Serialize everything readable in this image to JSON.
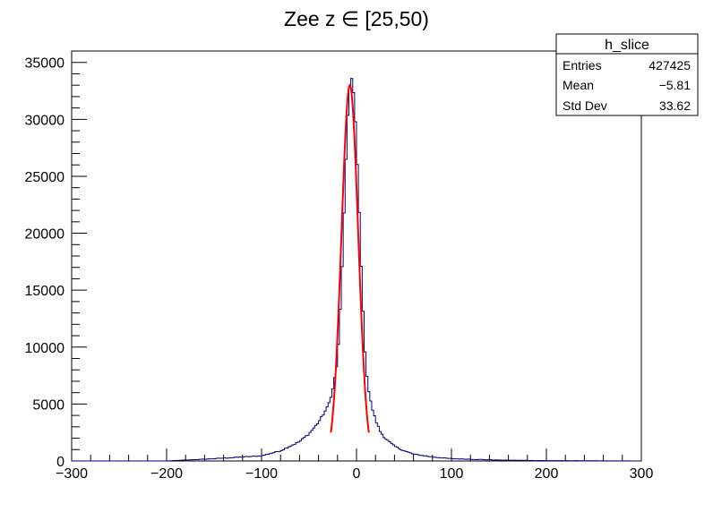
{
  "chart_data": {
    "type": "histogram",
    "title": "Zee z ∈ [25,50)",
    "xlabel": "",
    "ylabel": "",
    "xlim": [
      -300,
      300
    ],
    "ylim": [
      0,
      36000
    ],
    "x_ticks": [
      -300,
      -200,
      -100,
      0,
      100,
      200,
      300
    ],
    "x_tick_labels": [
      "−300",
      "−200",
      "−100",
      "0",
      "100",
      "200",
      "300"
    ],
    "y_ticks": [
      0,
      5000,
      10000,
      15000,
      20000,
      25000,
      30000,
      35000
    ],
    "y_tick_labels": [
      "0",
      "5000",
      "10000",
      "15000",
      "20000",
      "25000",
      "30000",
      "35000"
    ],
    "grid": false,
    "histogram": {
      "name": "h_slice",
      "color": "#000080",
      "bin_width": 2,
      "bin_range": [
        -300,
        300
      ],
      "profile_x": [
        -300,
        -200,
        -150,
        -100,
        -80,
        -60,
        -50,
        -40,
        -30,
        -25,
        -20,
        -18,
        -16,
        -14,
        -12,
        -10,
        -8,
        -6,
        -4,
        -2,
        0,
        2,
        4,
        6,
        8,
        10,
        12,
        14,
        16,
        18,
        20,
        25,
        30,
        40,
        50,
        60,
        80,
        100,
        150,
        200,
        300
      ],
      "profile_y": [
        0,
        0,
        200,
        450,
        900,
        1700,
        2400,
        3400,
        4800,
        6300,
        8800,
        11500,
        15000,
        19300,
        24000,
        28500,
        32200,
        33800,
        33300,
        31200,
        28000,
        24000,
        19500,
        15000,
        11000,
        8400,
        6600,
        5600,
        4800,
        4200,
        3600,
        2600,
        2000,
        1300,
        900,
        600,
        350,
        200,
        80,
        30,
        0
      ]
    },
    "fit": {
      "color": "#ff0000",
      "x_range": [
        -27,
        13
      ],
      "peak": 33000,
      "mean": -7,
      "sigma": 8.8
    },
    "stats_box": {
      "title": "h_slice",
      "rows": [
        {
          "label": "Entries",
          "value": "427425"
        },
        {
          "label": "Mean",
          "value": "−5.81"
        },
        {
          "label": "Std Dev",
          "value": "33.62"
        }
      ]
    }
  }
}
